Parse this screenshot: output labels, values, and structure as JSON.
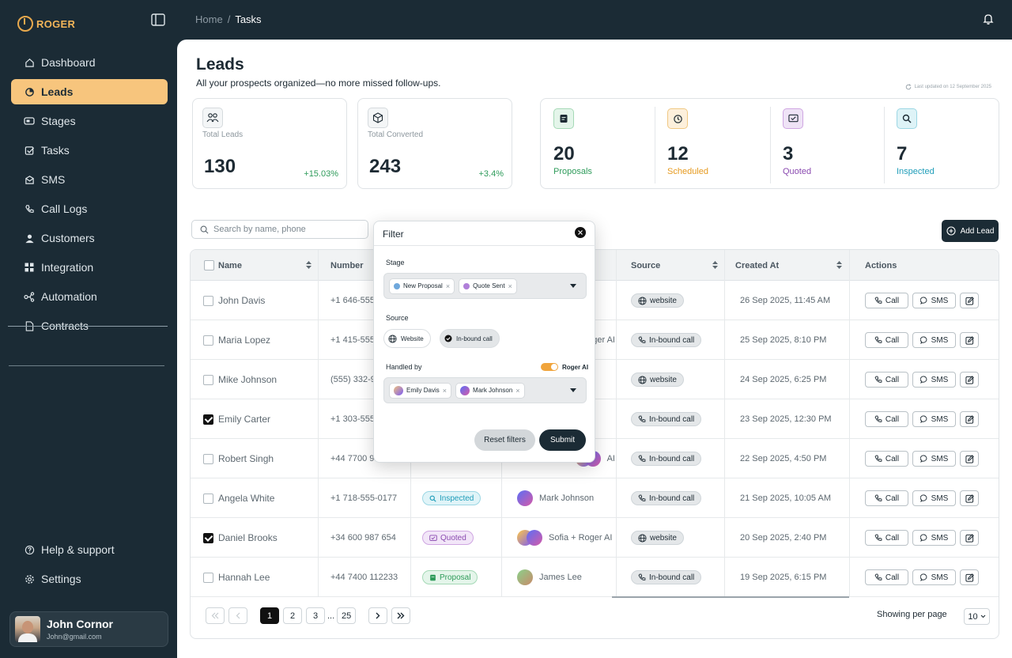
{
  "app": {
    "logo_text": "ROGER"
  },
  "breadcrumb": {
    "home": "Home",
    "separator": "/",
    "current": "Tasks"
  },
  "sidebar": {
    "items": [
      {
        "label": "Dashboard",
        "icon": "home-icon"
      },
      {
        "label": "Leads",
        "icon": "pie-chart-icon",
        "active": true
      },
      {
        "label": "Stages",
        "icon": "stages-icon"
      },
      {
        "label": "Tasks",
        "icon": "checklist-icon"
      },
      {
        "label": "SMS",
        "icon": "envelope-icon"
      },
      {
        "label": "Call Logs",
        "icon": "phone-icon"
      },
      {
        "label": "Customers",
        "icon": "user-icon"
      },
      {
        "label": "Integration",
        "icon": "grid-icon"
      },
      {
        "label": "Automation",
        "icon": "automation-icon"
      },
      {
        "label": "Contracts",
        "icon": "document-icon"
      }
    ],
    "bottom_items": [
      {
        "label": "Help & support",
        "icon": "help-icon"
      },
      {
        "label": "Settings",
        "icon": "gear-icon"
      }
    ],
    "user": {
      "name": "John Cornor",
      "email": "John@gmail.com"
    }
  },
  "page": {
    "title": "Leads",
    "subtitle": "All your prospects organized—no more missed follow-ups.",
    "last_updated": "Last updated on 12 September 2025"
  },
  "cards": {
    "total_leads": {
      "label": "Total Leads",
      "value": "130",
      "trend": "+15.03%"
    },
    "total_converted": {
      "label": "Total Converted",
      "value": "243",
      "trend": "+3.4%"
    }
  },
  "stats": [
    {
      "value": "20",
      "label": "Proposals",
      "color": "#2e9b5a",
      "bg": "#e4f5ea",
      "icon": "proposal-icon"
    },
    {
      "value": "12",
      "label": "Scheduled",
      "color": "#e69a1f",
      "bg": "#fdf0dc",
      "icon": "clock-icon"
    },
    {
      "value": "3",
      "label": "Quoted",
      "color": "#8a4ab0",
      "bg": "#efe3f6",
      "icon": "quote-icon"
    },
    {
      "value": "7",
      "label": "Inspected",
      "color": "#1f9db9",
      "bg": "#def3f7",
      "icon": "search-icon"
    }
  ],
  "toolbar": {
    "search_placeholder": "Search by name, phone",
    "add_lead": "Add Lead"
  },
  "table": {
    "headers": {
      "name": "Name",
      "number": "Number",
      "source": "Source",
      "created_at": "Created At",
      "actions": "Actions"
    },
    "call_label": "Call",
    "sms_label": "SMS",
    "rows": [
      {
        "checked": false,
        "name": "John Davis",
        "number": "+1 646-555",
        "stage": "",
        "handled": "",
        "source": "website",
        "created": "26 Sep 2025, 11:45 AM"
      },
      {
        "checked": false,
        "name": "Maria Lopez",
        "number": "+1 415-555-",
        "stage": "",
        "handled": "ger AI",
        "source": "In-bound call",
        "created": "25 Sep 2025, 8:10 PM"
      },
      {
        "checked": false,
        "name": "Mike Johnson",
        "number": "(555) 332-9",
        "stage": "",
        "handled": "",
        "source": "website",
        "created": "24 Sep 2025, 6:25 PM"
      },
      {
        "checked": true,
        "name": "Emily Carter",
        "number": "+1 303-555-",
        "stage": "",
        "handled": "",
        "source": "In-bound call",
        "created": "23 Sep 2025, 12:30 PM"
      },
      {
        "checked": false,
        "name": "Robert Singh",
        "number": "+44 7700 9",
        "stage": "",
        "handled": "AI",
        "source": "In-bound call",
        "created": "22 Sep 2025, 4:50 PM"
      },
      {
        "checked": false,
        "name": "Angela White",
        "number": "+1 718-555-0177",
        "stage": "Inspected",
        "handled": "Mark Johnson",
        "source": "In-bound call",
        "created": "21 Sep 2025, 10:05 AM"
      },
      {
        "checked": true,
        "name": "Daniel Brooks",
        "number": "+34 600 987 654",
        "stage": "Quoted",
        "handled": "Sofia + Roger AI",
        "source": "website",
        "created": "20 Sep 2025, 2:40 PM"
      },
      {
        "checked": false,
        "name": "Hannah Lee",
        "number": "+44 7400 112233",
        "stage": "Proposal",
        "handled": "James Lee",
        "source": "In-bound call",
        "created": "19 Sep 2025, 6:15 PM"
      }
    ]
  },
  "pagination": {
    "pages": [
      "1",
      "2",
      "3"
    ],
    "ellipsis": "...",
    "last": "25",
    "per_page_label": "Showing per page",
    "per_page_value": "10"
  },
  "filter": {
    "title": "Filter",
    "stage_label": "Stage",
    "stage_chips": [
      {
        "label": "New Proposal",
        "color": "#6fa8dc"
      },
      {
        "label": "Quote Sent",
        "color": "#b07fd9"
      }
    ],
    "source_label": "Source",
    "source_options": [
      {
        "label": "Website",
        "selected": false
      },
      {
        "label": "In-bound call",
        "selected": true
      }
    ],
    "handled_label": "Handled by",
    "roger_ai_label": "Roger AI",
    "roger_ai_enabled": true,
    "handled_chips": [
      {
        "label": "Emily Davis"
      },
      {
        "label": "Mark Johnson"
      }
    ],
    "reset_label": "Reset filters",
    "submit_label": "Submit"
  }
}
